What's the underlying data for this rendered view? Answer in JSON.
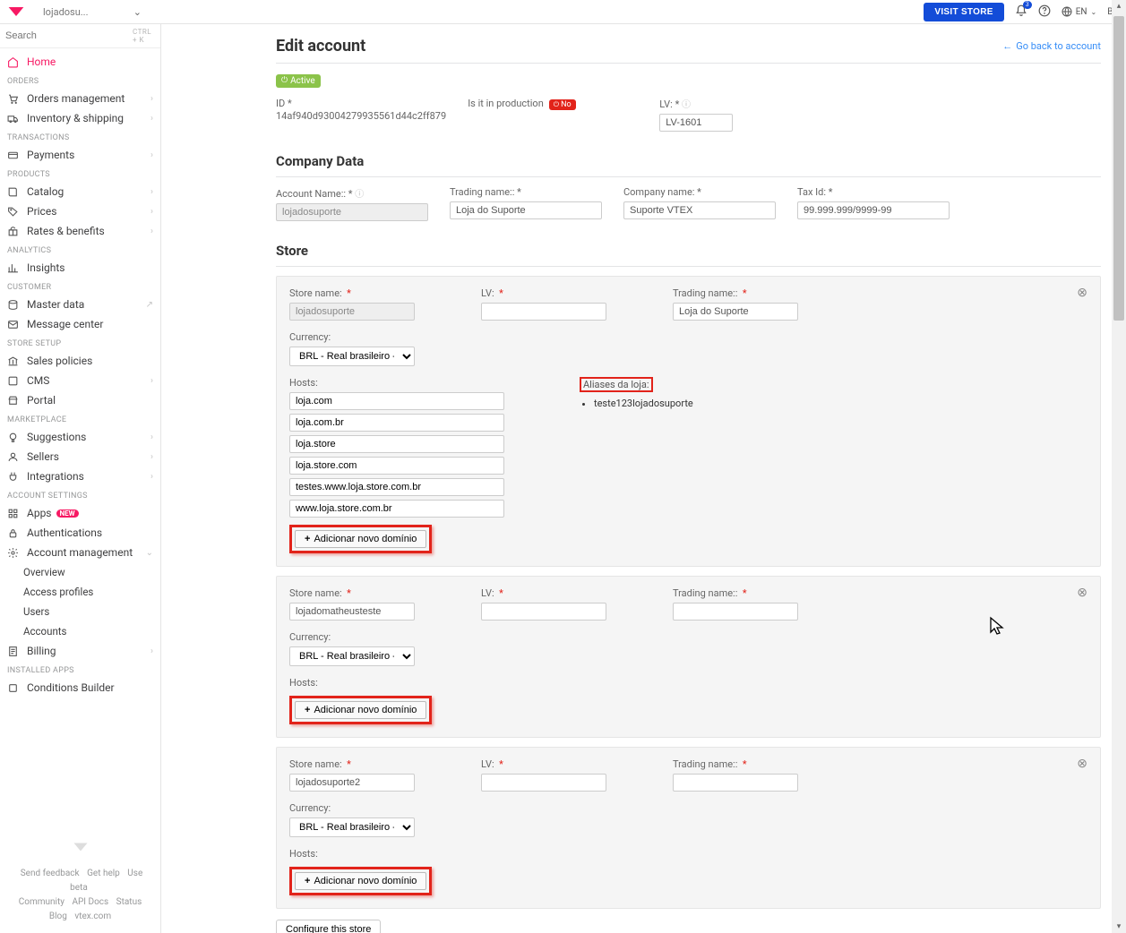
{
  "top": {
    "storeName": "lojadosu...",
    "visitStore": "VISIT STORE",
    "notifCount": "3",
    "lang": "EN",
    "avatar": "BC"
  },
  "search": {
    "placeholder": "Search",
    "hint": "CTRL + K"
  },
  "nav": {
    "home": "Home",
    "sections": {
      "orders": "ORDERS",
      "transactions": "TRANSACTIONS",
      "products": "PRODUCTS",
      "analytics": "ANALYTICS",
      "customer": "CUSTOMER",
      "storeSetup": "STORE SETUP",
      "marketplace": "MARKETPLACE",
      "accountSettings": "ACCOUNT SETTINGS",
      "installed": "INSTALLED APPS"
    },
    "items": {
      "ordersMgmt": "Orders management",
      "invShip": "Inventory & shipping",
      "payments": "Payments",
      "catalog": "Catalog",
      "prices": "Prices",
      "rates": "Rates & benefits",
      "insights": "Insights",
      "master": "Master data",
      "msgCenter": "Message center",
      "salesPol": "Sales policies",
      "cms": "CMS",
      "portal": "Portal",
      "suggestions": "Suggestions",
      "sellers": "Sellers",
      "integrations": "Integrations",
      "apps": "Apps",
      "appsPill": "NEW",
      "auth": "Authentications",
      "acctMgmt": "Account management",
      "overview": "Overview",
      "accessProf": "Access profiles",
      "users": "Users",
      "accounts": "Accounts",
      "billing": "Billing",
      "condBuilder": "Conditions Builder"
    }
  },
  "footer": {
    "sendFeedback": "Send feedback",
    "getHelp": "Get help",
    "useBeta": "Use beta",
    "community": "Community",
    "apiDocs": "API Docs",
    "status": "Status",
    "blog": "Blog",
    "vtex": "vtex.com"
  },
  "page": {
    "title": "Edit account",
    "backLink": "Go back to account",
    "activeBadge": "Active",
    "labels": {
      "id": "ID *",
      "isProd": "Is it in production",
      "lv": "LV: *",
      "accountName": "Account Name:: *",
      "tradingName": "Trading name:: *",
      "companyName": "Company name: *",
      "taxId": "Tax Id: *",
      "storeName": "Store name:",
      "storeLv": "LV:",
      "storeTrading": "Trading name::",
      "currency": "Currency:",
      "hosts": "Hosts:",
      "aliases": "Aliases da loja:"
    },
    "idValue": "14af940d93004279935561d44c2ff879",
    "prodBadge": "No",
    "lvValue": "LV-1601",
    "companyDataTitle": "Company Data",
    "storeTitle": "Store",
    "accountName": "lojadosuporte",
    "tradingName": "Loja do Suporte",
    "companyName": "Suporte VTEX",
    "taxId": "99.999.999/9999-99",
    "currencyOption": "BRL - Real brasileiro - Brasil",
    "addDomain": "Adicionar novo domínio",
    "configBtn": "Configure this store",
    "stores": [
      {
        "name": "lojadosuporte",
        "trading": "Loja do Suporte",
        "hosts": [
          "loja.com",
          "loja.com.br",
          "loja.store",
          "loja.store.com",
          "testes.www.loja.store.com.br",
          "www.loja.store.com.br"
        ],
        "aliases": [
          "teste123lojadosuporte"
        ]
      },
      {
        "name": "lojadomatheusteste",
        "trading": "",
        "hosts": [],
        "aliases": []
      },
      {
        "name": "lojadosuporte2",
        "trading": "",
        "hosts": [],
        "aliases": []
      }
    ]
  }
}
